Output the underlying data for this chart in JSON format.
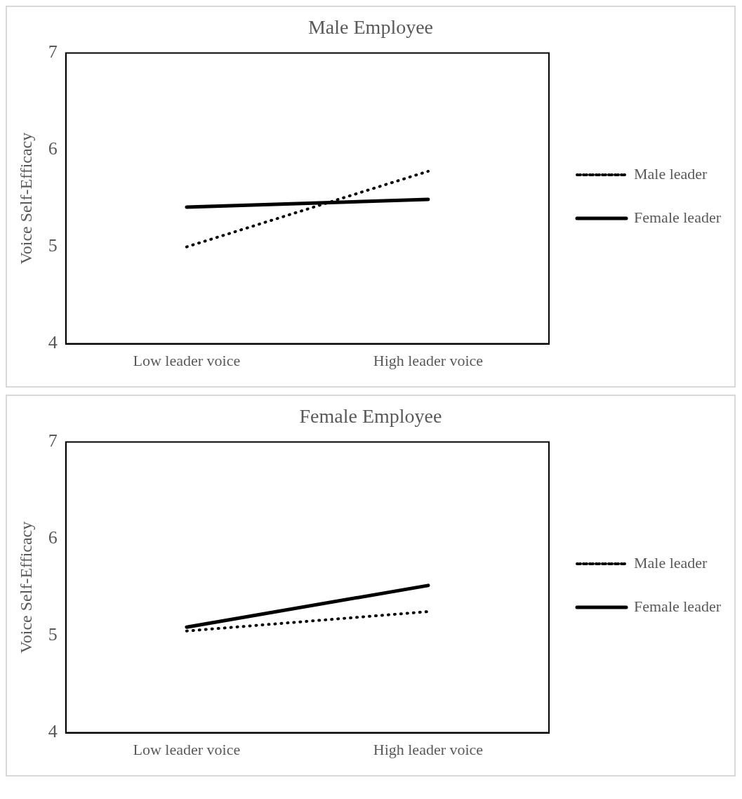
{
  "chart_data": [
    {
      "type": "line",
      "title": "Male Employee",
      "ylabel": "Voice Self-Efficacy",
      "categories": [
        "Low leader voice",
        "High leader voice"
      ],
      "series": [
        {
          "name": "Male leader",
          "color": "#000000",
          "line_style": "dotted",
          "values": [
            5.0,
            5.78
          ]
        },
        {
          "name": "Female leader",
          "color": "#000000",
          "line_style": "solid",
          "values": [
            5.41,
            5.49
          ]
        }
      ],
      "ylim": [
        4,
        7
      ],
      "yticks": [
        4,
        5,
        6,
        7
      ],
      "grid": false,
      "legend": "right",
      "marker": "none"
    },
    {
      "type": "line",
      "title": "Female Employee",
      "ylabel": "Voice Self-Efficacy",
      "categories": [
        "Low leader voice",
        "High leader voice"
      ],
      "series": [
        {
          "name": "Male leader",
          "color": "#000000",
          "line_style": "dotted",
          "values": [
            5.05,
            5.25
          ]
        },
        {
          "name": "Female leader",
          "color": "#000000",
          "line_style": "solid",
          "values": [
            5.09,
            5.52
          ]
        }
      ],
      "ylim": [
        4,
        7
      ],
      "yticks": [
        4,
        5,
        6,
        7
      ],
      "grid": false,
      "legend": "right",
      "marker": "none"
    }
  ]
}
